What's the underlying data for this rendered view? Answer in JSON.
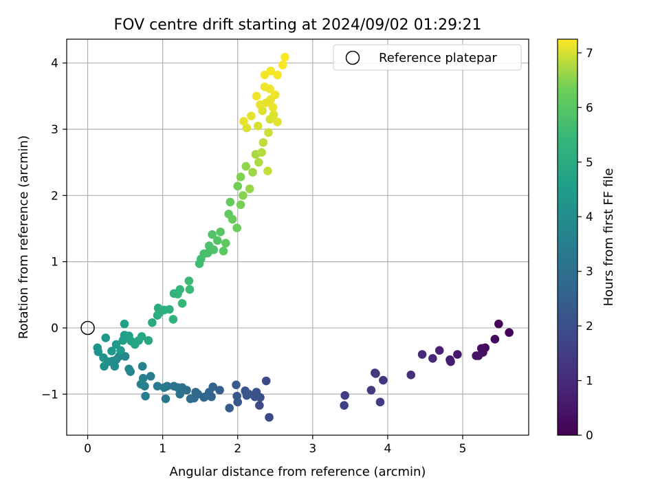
{
  "chart_data": {
    "type": "scatter",
    "title": "FOV centre drift starting at 2024/09/02 01:29:21",
    "xlabel": "Angular distance from reference (arcmin)",
    "ylabel": "Rotation from reference (arcmin)",
    "xlim": [
      -0.28,
      5.88
    ],
    "ylim": [
      -1.62,
      4.36
    ],
    "xticks": [
      "0",
      "1",
      "2",
      "3",
      "4",
      "5"
    ],
    "xtick_values": [
      0,
      1,
      2,
      3,
      4,
      5
    ],
    "yticks": [
      "−1",
      "0",
      "1",
      "2",
      "3",
      "4"
    ],
    "ytick_values": [
      -1,
      0,
      1,
      2,
      3,
      4
    ],
    "grid": true,
    "legend": {
      "position": "top-right",
      "entries": [
        "Reference platepar"
      ]
    },
    "reference_point": {
      "x": 0,
      "y": 0,
      "marker": "open-circle"
    },
    "colorbar": {
      "label": "Hours from first FF file",
      "colormap": "viridis",
      "range": [
        0,
        7.25
      ],
      "ticks": [
        "0",
        "1",
        "2",
        "3",
        "4",
        "5",
        "6",
        "7"
      ],
      "tick_values": [
        0,
        1,
        2,
        3,
        4,
        5,
        6,
        7
      ]
    },
    "series": [
      {
        "values": [
          [
            5.48,
            0.06,
            0.05
          ],
          [
            5.62,
            -0.07,
            0.1
          ],
          [
            5.43,
            -0.17,
            0.18
          ],
          [
            5.3,
            -0.3,
            0.25
          ],
          [
            5.25,
            -0.31,
            0.3
          ],
          [
            5.27,
            -0.37,
            0.35
          ],
          [
            5.21,
            -0.42,
            0.4
          ],
          [
            5.18,
            -0.42,
            0.45
          ],
          [
            4.93,
            -0.4,
            0.55
          ],
          [
            4.83,
            -0.48,
            0.65
          ],
          [
            4.84,
            -0.51,
            0.7
          ],
          [
            4.69,
            -0.34,
            0.8
          ],
          [
            4.6,
            -0.46,
            0.9
          ],
          [
            4.46,
            -0.4,
            1.0
          ],
          [
            4.31,
            -0.71,
            1.1
          ],
          [
            3.94,
            -0.79,
            1.25
          ],
          [
            3.83,
            -0.68,
            1.3
          ],
          [
            3.84,
            -0.69,
            1.35
          ],
          [
            3.78,
            -0.94,
            1.4
          ],
          [
            3.9,
            -1.12,
            1.45
          ],
          [
            3.43,
            -1.02,
            1.55
          ],
          [
            3.42,
            -1.17,
            1.6
          ],
          [
            2.42,
            -1.35,
            1.8
          ],
          [
            2.38,
            -0.8,
            1.85
          ],
          [
            2.29,
            -1.17,
            1.9
          ],
          [
            2.3,
            -1.05,
            1.95
          ],
          [
            2.25,
            -0.97,
            2.0
          ],
          [
            2.23,
            -1.04,
            2.05
          ],
          [
            2.15,
            -1.0,
            2.1
          ],
          [
            2.12,
            -1.02,
            2.15
          ],
          [
            2.1,
            -0.95,
            2.2
          ],
          [
            2.0,
            -1.12,
            2.25
          ],
          [
            1.99,
            -1.03,
            2.3
          ],
          [
            1.98,
            -0.86,
            2.35
          ],
          [
            1.89,
            -1.21,
            2.4
          ],
          [
            1.76,
            -0.94,
            2.45
          ],
          [
            1.67,
            -0.89,
            2.5
          ],
          [
            1.65,
            -1.04,
            2.55
          ],
          [
            1.62,
            -0.97,
            2.6
          ],
          [
            1.56,
            -1.04,
            2.65
          ],
          [
            1.55,
            -1.05,
            2.7
          ],
          [
            1.47,
            -1.0,
            2.75
          ],
          [
            1.44,
            -0.97,
            2.8
          ],
          [
            1.42,
            -1.06,
            2.85
          ],
          [
            1.37,
            -1.07,
            2.9
          ],
          [
            1.32,
            -0.94,
            2.95
          ],
          [
            1.26,
            -0.9,
            3.0
          ],
          [
            1.23,
            -1.0,
            3.05
          ],
          [
            1.2,
            -0.9,
            3.1
          ],
          [
            1.15,
            -0.88,
            3.15
          ],
          [
            1.06,
            -0.88,
            3.2
          ],
          [
            1.04,
            -1.07,
            3.25
          ],
          [
            1.02,
            -0.9,
            3.3
          ],
          [
            0.93,
            -0.88,
            3.35
          ],
          [
            0.84,
            -0.73,
            3.4
          ],
          [
            0.77,
            -1.03,
            3.45
          ],
          [
            0.76,
            -0.88,
            3.5
          ],
          [
            0.74,
            -0.76,
            3.55
          ],
          [
            0.73,
            -0.58,
            3.6
          ],
          [
            0.71,
            -0.85,
            3.65
          ],
          [
            0.57,
            -0.66,
            3.7
          ],
          [
            0.55,
            -0.62,
            3.75
          ],
          [
            0.5,
            -0.43,
            3.8
          ],
          [
            0.42,
            -0.43,
            3.85
          ],
          [
            0.38,
            -0.48,
            3.9
          ],
          [
            0.36,
            -0.58,
            3.95
          ],
          [
            0.33,
            -0.5,
            4.0
          ],
          [
            0.28,
            -0.51,
            4.05
          ],
          [
            0.22,
            -0.58,
            4.1
          ],
          [
            0.21,
            -0.45,
            4.15
          ],
          [
            0.14,
            -0.36,
            4.2
          ],
          [
            0.13,
            -0.3,
            4.25
          ],
          [
            0.24,
            -0.15,
            4.3
          ],
          [
            0.32,
            -0.35,
            4.35
          ],
          [
            0.38,
            -0.25,
            4.4
          ],
          [
            0.44,
            -0.34,
            4.45
          ],
          [
            0.47,
            -0.19,
            4.5
          ],
          [
            0.49,
            -0.11,
            4.55
          ],
          [
            0.49,
            0.06,
            4.6
          ],
          [
            0.55,
            -0.12,
            4.65
          ],
          [
            0.58,
            -0.2,
            4.7
          ],
          [
            0.63,
            -0.25,
            4.75
          ],
          [
            0.68,
            -0.19,
            4.8
          ],
          [
            0.72,
            -0.13,
            4.85
          ],
          [
            0.81,
            -0.19,
            4.9
          ],
          [
            0.86,
            0.08,
            4.95
          ],
          [
            0.93,
            0.19,
            5.0
          ],
          [
            0.94,
            0.3,
            5.05
          ],
          [
            0.96,
            0.23,
            5.1
          ],
          [
            1.02,
            0.27,
            5.15
          ],
          [
            1.09,
            0.28,
            5.2
          ],
          [
            1.14,
            0.13,
            5.25
          ],
          [
            1.15,
            0.52,
            5.3
          ],
          [
            1.2,
            0.51,
            5.35
          ],
          [
            1.23,
            0.58,
            5.4
          ],
          [
            1.26,
            0.37,
            5.45
          ],
          [
            1.36,
            0.58,
            5.5
          ],
          [
            1.35,
            0.71,
            5.55
          ],
          [
            1.49,
            0.97,
            5.6
          ],
          [
            1.51,
            1.04,
            5.65
          ],
          [
            1.55,
            1.12,
            5.7
          ],
          [
            1.6,
            1.13,
            5.75
          ],
          [
            1.62,
            1.24,
            5.8
          ],
          [
            1.68,
            1.18,
            5.85
          ],
          [
            1.66,
            1.41,
            5.9
          ],
          [
            1.73,
            1.32,
            5.95
          ],
          [
            1.77,
            1.45,
            6.0
          ],
          [
            1.81,
            1.16,
            6.05
          ],
          [
            1.84,
            1.28,
            6.1
          ],
          [
            1.88,
            1.72,
            6.15
          ],
          [
            1.9,
            1.9,
            6.2
          ],
          [
            1.93,
            1.64,
            6.25
          ],
          [
            1.99,
            1.51,
            6.3
          ],
          [
            2.0,
            2.14,
            6.35
          ],
          [
            2.04,
            1.86,
            6.4
          ],
          [
            2.04,
            2.28,
            6.45
          ],
          [
            2.07,
            2.0,
            6.5
          ],
          [
            2.11,
            2.44,
            6.55
          ],
          [
            2.16,
            2.1,
            6.6
          ],
          [
            2.2,
            2.35,
            6.65
          ],
          [
            2.24,
            2.62,
            6.7
          ],
          [
            2.28,
            2.5,
            6.75
          ],
          [
            2.32,
            2.65,
            6.8
          ],
          [
            2.34,
            2.8,
            6.85
          ],
          [
            2.4,
            2.37,
            6.9
          ],
          [
            2.41,
            2.95,
            6.95
          ],
          [
            2.43,
            3.15,
            7.0
          ],
          [
            2.48,
            3.22,
            7.05
          ],
          [
            2.53,
            3.11,
            7.08
          ],
          [
            2.38,
            3.4,
            7.1
          ],
          [
            2.44,
            3.45,
            7.12
          ],
          [
            2.47,
            3.33,
            7.14
          ],
          [
            2.5,
            3.52,
            7.15
          ],
          [
            2.43,
            3.61,
            7.16
          ],
          [
            2.36,
            3.64,
            7.17
          ],
          [
            2.36,
            3.82,
            7.18
          ],
          [
            2.44,
            3.88,
            7.19
          ],
          [
            2.53,
            3.82,
            7.2
          ],
          [
            2.6,
            3.97,
            7.22
          ],
          [
            2.63,
            4.09,
            7.24
          ],
          [
            2.33,
            3.28,
            7.05
          ],
          [
            2.3,
            3.37,
            7.1
          ],
          [
            2.27,
            3.05,
            7.0
          ],
          [
            2.25,
            3.5,
            7.15
          ],
          [
            2.12,
            3.02,
            7.05
          ],
          [
            2.08,
            3.12,
            7.1
          ],
          [
            2.18,
            3.2,
            7.08
          ]
        ]
      }
    ]
  }
}
